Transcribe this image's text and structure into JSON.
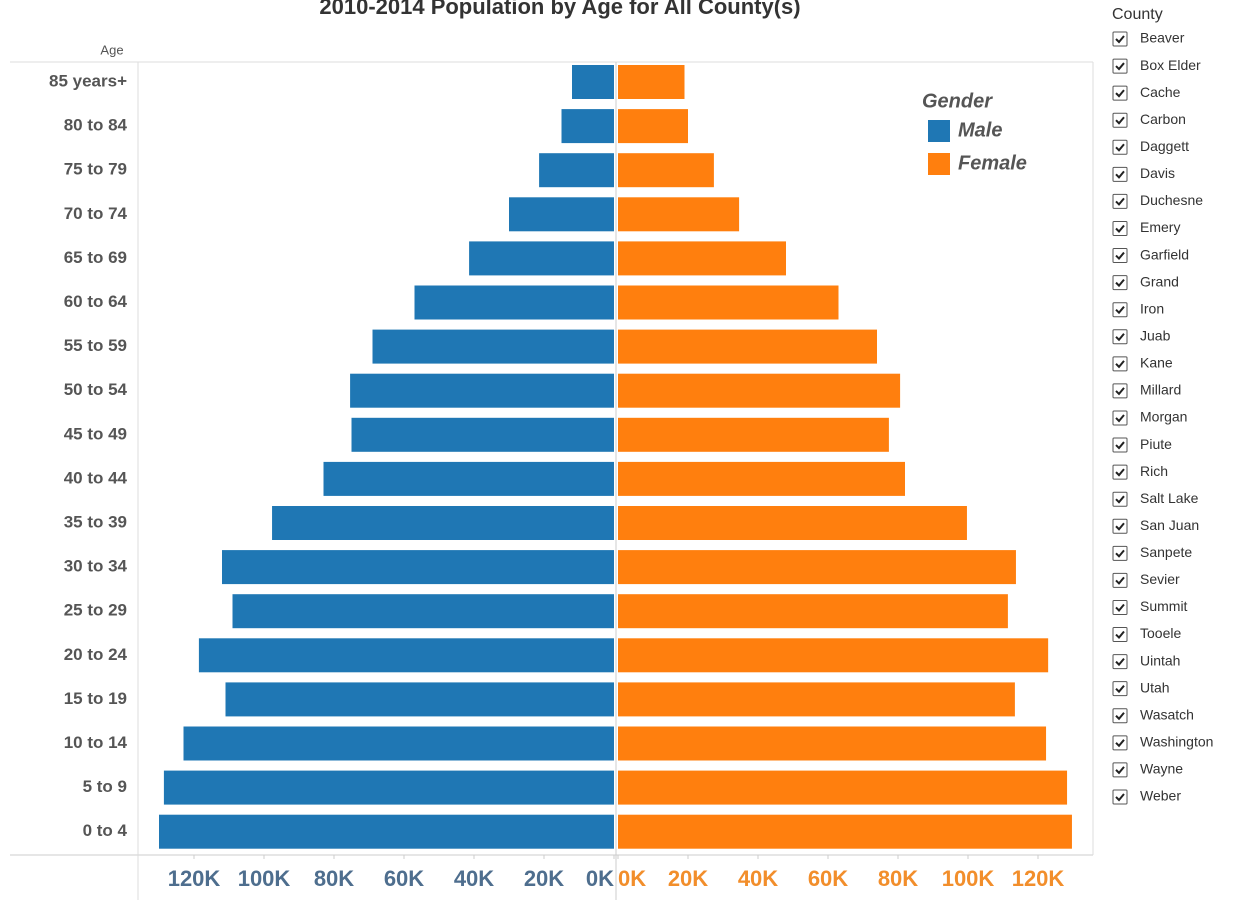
{
  "chart_data": {
    "type": "pyramid",
    "title": "2010-2014 Population by Age for All County(s)",
    "y_label": "Age",
    "categories": [
      "85 years+",
      "80 to 84",
      "75 to 79",
      "70 to 74",
      "65 to 69",
      "60 to 64",
      "55 to 59",
      "50 to 54",
      "45 to 49",
      "40 to 44",
      "35 to 39",
      "30 to 34",
      "25 to 29",
      "20 to 24",
      "15 to 19",
      "10 to 14",
      "5 to 9",
      "0 to 4"
    ],
    "legend_title": "Gender",
    "legend": "top-right",
    "series": [
      {
        "name": "Male",
        "color": "#1f77b4",
        "tick_color": "#4e6e8e",
        "values": [
          12000,
          15000,
          21400,
          30000,
          41400,
          57000,
          69000,
          75400,
          75000,
          83000,
          97700,
          112000,
          109000,
          118600,
          111000,
          123000,
          128600,
          130000
        ]
      },
      {
        "name": "Female",
        "color": "#ff7f0e",
        "tick_color": "#f28e2b",
        "values": [
          19000,
          20000,
          27400,
          34600,
          48000,
          63000,
          74000,
          80600,
          77400,
          82000,
          99700,
          113700,
          111400,
          122900,
          113400,
          122300,
          128300,
          129700
        ]
      }
    ],
    "xlim": [
      0,
      136000
    ],
    "xticks": [
      {
        "value": 0,
        "label": "0K"
      },
      {
        "value": 20000,
        "label": "20K"
      },
      {
        "value": 40000,
        "label": "40K"
      },
      {
        "value": 60000,
        "label": "60K"
      },
      {
        "value": 80000,
        "label": "80K"
      },
      {
        "value": 100000,
        "label": "100K"
      },
      {
        "value": 120000,
        "label": "120K"
      }
    ]
  },
  "filter": {
    "title": "County",
    "items": [
      "Beaver",
      "Box Elder",
      "Cache",
      "Carbon",
      "Daggett",
      "Davis",
      "Duchesne",
      "Emery",
      "Garfield",
      "Grand",
      "Iron",
      "Juab",
      "Kane",
      "Millard",
      "Morgan",
      "Piute",
      "Rich",
      "Salt Lake",
      "San Juan",
      "Sanpete",
      "Sevier",
      "Summit",
      "Tooele",
      "Uintah",
      "Utah",
      "Wasatch",
      "Washington",
      "Wayne",
      "Weber"
    ]
  }
}
